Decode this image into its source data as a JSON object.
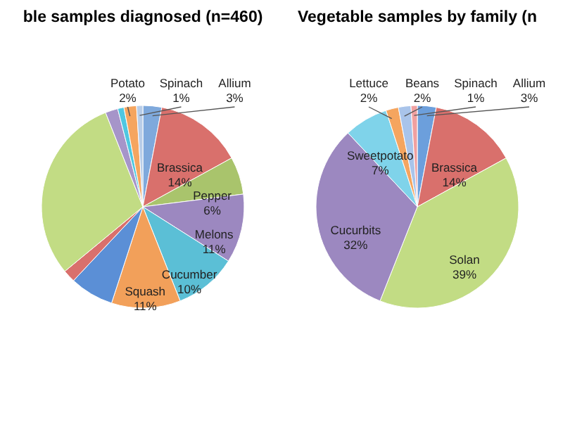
{
  "chart_data": [
    {
      "type": "pie",
      "title": "ble samples diagnosed (n=460)",
      "categories": [
        "Allium",
        "Brassica",
        "Pepper",
        "Melons",
        "Cucumber",
        "Squash",
        null,
        null,
        null,
        null,
        null,
        "Potato",
        "Spinach"
      ],
      "values": [
        3,
        14,
        6,
        11,
        10,
        11,
        7,
        2,
        30,
        2,
        1,
        2,
        1
      ],
      "value_labels": [
        "3%",
        "14%",
        "6%",
        "11%",
        "10%",
        "11%",
        null,
        null,
        null,
        null,
        null,
        "2%",
        "1%"
      ],
      "colors": [
        "#7fa9dc",
        "#d9706c",
        "#a9c46c",
        "#9c88c0",
        "#5bbfd6",
        "#f2a05a",
        "#5b8fd6",
        "#d9706c",
        "#c2dc84",
        "#a695c9",
        "#4fc7e0",
        "#f5a55f",
        "#b8cde8"
      ]
    },
    {
      "type": "pie",
      "title": "Vegetable samples by family (n",
      "categories": [
        "Allium",
        "Brassica",
        "Solan",
        "Cucurbits",
        "Sweetpotato",
        "Lettuce",
        "Beans",
        "Spinach"
      ],
      "values": [
        3,
        14,
        39,
        32,
        7,
        2,
        2,
        1
      ],
      "value_labels": [
        "3%",
        "14%",
        "39%",
        "32%",
        "7%",
        "2%",
        "2%",
        "1%"
      ],
      "colors": [
        "#6c9fdc",
        "#d9706c",
        "#c2dc84",
        "#9c88c0",
        "#7fd3ea",
        "#f5a55f",
        "#a9c4ea",
        "#f0a0a0"
      ]
    }
  ]
}
